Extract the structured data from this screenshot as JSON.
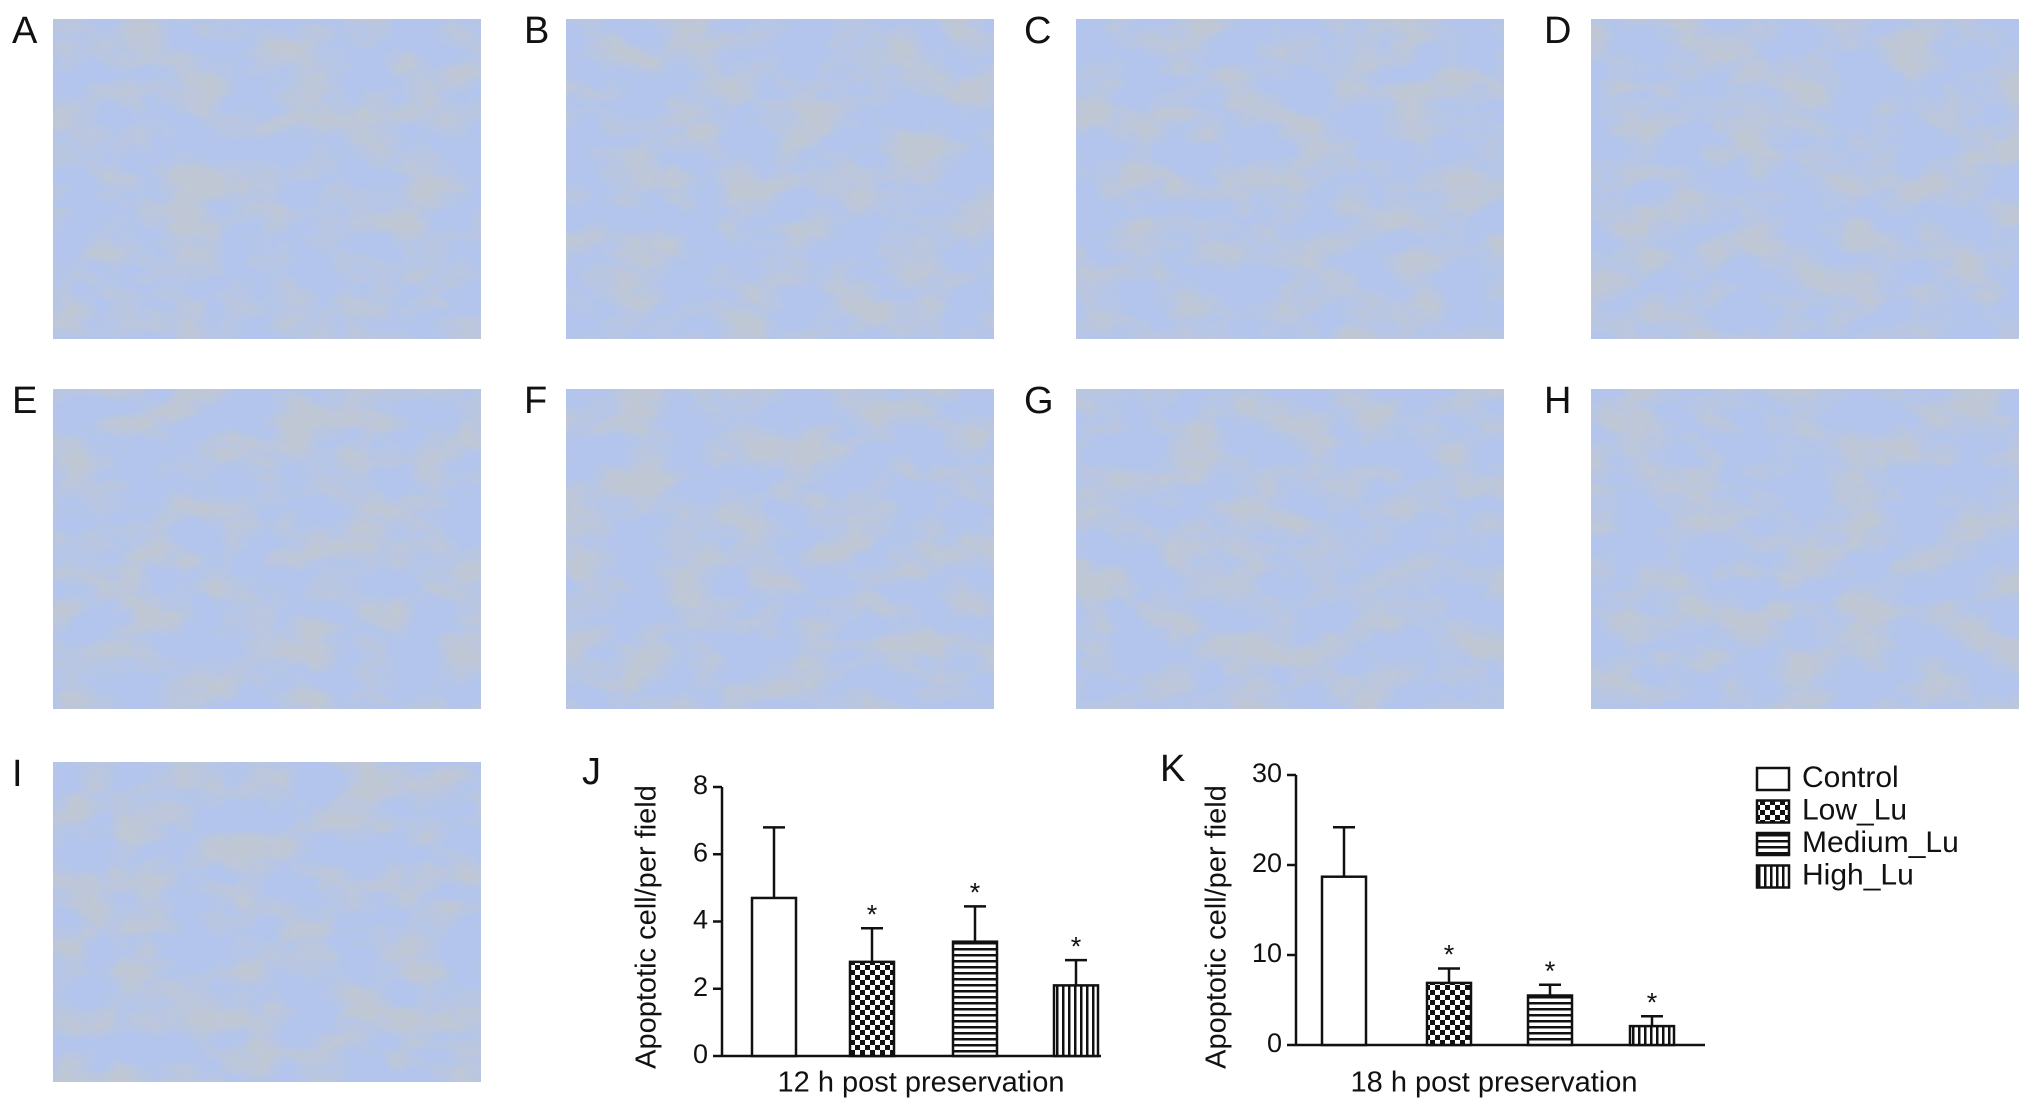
{
  "panels": [
    {
      "label": "A"
    },
    {
      "label": "B"
    },
    {
      "label": "C"
    },
    {
      "label": "D"
    },
    {
      "label": "E"
    },
    {
      "label": "F"
    },
    {
      "label": "G"
    },
    {
      "label": "H"
    },
    {
      "label": "I"
    }
  ],
  "chart_data": [
    {
      "type": "bar",
      "panel_label": "J",
      "y_label": "Apoptotic cell/per field",
      "x_label": "12 h post preservation",
      "ylim": [
        0,
        8
      ],
      "yticks": [
        0,
        2,
        4,
        6,
        8
      ],
      "series": [
        {
          "pattern": "none",
          "values": [
            4.7
          ],
          "errors": [
            2.1
          ]
        },
        {
          "pattern": "checker",
          "values": [
            2.8
          ],
          "errors": [
            1.0
          ],
          "annotation": "*"
        },
        {
          "pattern": "horizontal",
          "values": [
            3.4
          ],
          "errors": [
            1.05
          ],
          "annotation": "*"
        },
        {
          "pattern": "vertical",
          "values": [
            2.1
          ],
          "errors": [
            0.75
          ],
          "annotation": "*"
        }
      ]
    },
    {
      "type": "bar",
      "panel_label": "K",
      "y_label": "Apoptotic cell/per field",
      "x_label": "18 h post preservation",
      "ylim": [
        0,
        30
      ],
      "yticks": [
        0,
        10,
        20,
        30
      ],
      "series": [
        {
          "name": "Control",
          "pattern": "none",
          "values": [
            18.7
          ],
          "errors": [
            5.5
          ]
        },
        {
          "name": "Low_Lu",
          "pattern": "checker",
          "values": [
            6.9
          ],
          "errors": [
            1.6
          ],
          "annotation": "*"
        },
        {
          "name": "Medium_Lu",
          "pattern": "horizontal",
          "values": [
            5.5
          ],
          "errors": [
            1.2
          ],
          "annotation": "*"
        },
        {
          "name": "High_Lu",
          "pattern": "vertical",
          "values": [
            2.1
          ],
          "errors": [
            1.1
          ],
          "annotation": "*"
        }
      ]
    }
  ]
}
